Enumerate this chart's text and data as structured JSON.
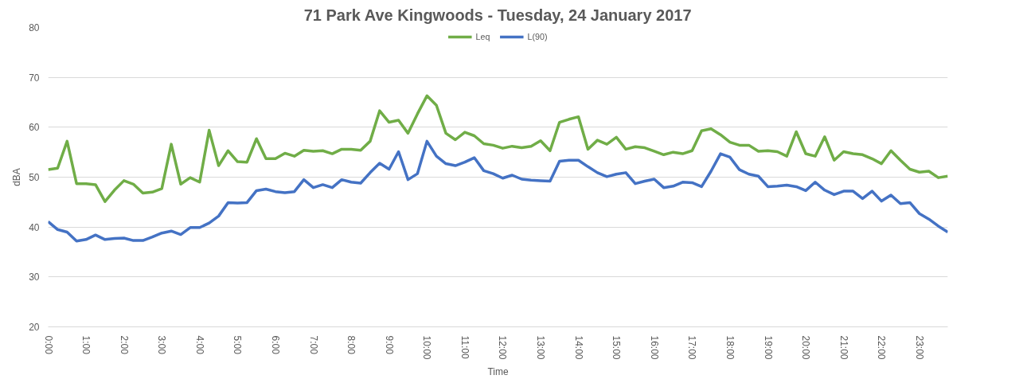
{
  "chart_data": {
    "type": "line",
    "title": "71 Park Ave Kingwoods - Tuesday, 24 January 2017",
    "xlabel": "Time",
    "ylabel": "dBA",
    "x": [
      0,
      0.25,
      0.5,
      0.75,
      1,
      1.25,
      1.5,
      1.75,
      2,
      2.25,
      2.5,
      2.75,
      3,
      3.25,
      3.5,
      3.75,
      4,
      4.25,
      4.5,
      4.75,
      5,
      5.25,
      5.5,
      5.75,
      6,
      6.25,
      6.5,
      6.75,
      7,
      7.25,
      7.5,
      7.75,
      8,
      8.25,
      8.5,
      8.75,
      9,
      9.25,
      9.5,
      9.75,
      10,
      10.25,
      10.5,
      10.75,
      11,
      11.25,
      11.5,
      11.75,
      12,
      12.25,
      12.5,
      12.75,
      13,
      13.25,
      13.5,
      13.75,
      14,
      14.25,
      14.5,
      14.75,
      15,
      15.25,
      15.5,
      15.75,
      16,
      16.25,
      16.5,
      16.75,
      17,
      17.25,
      17.5,
      17.75,
      18,
      18.25,
      18.5,
      18.75,
      19,
      19.25,
      19.5,
      19.75,
      20,
      20.25,
      20.5,
      20.75,
      21,
      21.25,
      21.5,
      21.75,
      22,
      22.25,
      22.5,
      22.75,
      23,
      23.25,
      23.5,
      23.75
    ],
    "series": [
      {
        "name": "Leq",
        "color": "#70ad47",
        "values": [
          51.5,
          51.8,
          57.2,
          48.7,
          48.7,
          48.5,
          45.1,
          47.4,
          49.3,
          48.6,
          46.8,
          47.0,
          47.7,
          56.6,
          48.6,
          49.9,
          49.0,
          59.4,
          52.3,
          55.3,
          53.1,
          53.0,
          57.7,
          53.7,
          53.7,
          54.8,
          54.2,
          55.4,
          55.2,
          55.3,
          54.7,
          55.6,
          55.6,
          55.4,
          57.2,
          63.3,
          61.0,
          61.4,
          58.8,
          62.7,
          66.3,
          64.4,
          58.8,
          57.5,
          59.0,
          58.3,
          56.7,
          56.4,
          55.8,
          56.2,
          55.9,
          56.2,
          57.3,
          55.3,
          61.0,
          61.6,
          62.1,
          55.6,
          57.4,
          56.6,
          58.0,
          55.6,
          56.1,
          55.9,
          55.2,
          54.5,
          55.0,
          54.7,
          55.3,
          59.3,
          59.7,
          58.5,
          57.0,
          56.4,
          56.4,
          55.2,
          55.3,
          55.1,
          54.2,
          59.1,
          54.7,
          54.2,
          58.1,
          53.4,
          55.1,
          54.7,
          54.5,
          53.7,
          52.7,
          55.3,
          53.4,
          51.6,
          51.0,
          51.2,
          49.9,
          50.2
        ]
      },
      {
        "name": "L(90)",
        "color": "#4472c4",
        "values": [
          41.1,
          39.5,
          39.0,
          37.2,
          37.5,
          38.4,
          37.5,
          37.7,
          37.8,
          37.3,
          37.3,
          38.0,
          38.8,
          39.2,
          38.5,
          39.9,
          39.9,
          40.8,
          42.2,
          44.9,
          44.8,
          44.9,
          47.3,
          47.6,
          47.1,
          46.9,
          47.1,
          49.5,
          47.9,
          48.5,
          47.9,
          49.5,
          49.0,
          48.8,
          50.9,
          52.8,
          51.6,
          55.1,
          49.5,
          50.7,
          57.2,
          54.2,
          52.7,
          52.3,
          53.0,
          53.9,
          51.3,
          50.7,
          49.8,
          50.4,
          49.6,
          49.4,
          49.3,
          49.2,
          53.2,
          53.4,
          53.4,
          52.1,
          50.9,
          50.1,
          50.6,
          50.9,
          48.7,
          49.2,
          49.6,
          47.9,
          48.2,
          49.0,
          48.9,
          48.1,
          51.2,
          54.7,
          54.0,
          51.5,
          50.6,
          50.2,
          48.1,
          48.2,
          48.4,
          48.1,
          47.3,
          49.0,
          47.4,
          46.5,
          47.2,
          47.2,
          45.7,
          47.2,
          45.2,
          46.4,
          44.7,
          44.9,
          42.7,
          41.6,
          40.2,
          39.0
        ]
      }
    ],
    "xlim": [
      0,
      23.75
    ],
    "xticks": [
      {
        "value": 0,
        "label": "0:00"
      },
      {
        "value": 1,
        "label": "1:00"
      },
      {
        "value": 2,
        "label": "2:00"
      },
      {
        "value": 3,
        "label": "3:00"
      },
      {
        "value": 4,
        "label": "4:00"
      },
      {
        "value": 5,
        "label": "5:00"
      },
      {
        "value": 6,
        "label": "6:00"
      },
      {
        "value": 7,
        "label": "7:00"
      },
      {
        "value": 8,
        "label": "8:00"
      },
      {
        "value": 9,
        "label": "9:00"
      },
      {
        "value": 10,
        "label": "10:00"
      },
      {
        "value": 11,
        "label": "11:00"
      },
      {
        "value": 12,
        "label": "12:00"
      },
      {
        "value": 13,
        "label": "13:00"
      },
      {
        "value": 14,
        "label": "14:00"
      },
      {
        "value": 15,
        "label": "15:00"
      },
      {
        "value": 16,
        "label": "16:00"
      },
      {
        "value": 17,
        "label": "17:00"
      },
      {
        "value": 18,
        "label": "18:00"
      },
      {
        "value": 19,
        "label": "19:00"
      },
      {
        "value": 20,
        "label": "20:00"
      },
      {
        "value": 21,
        "label": "21:00"
      },
      {
        "value": 22,
        "label": "22:00"
      },
      {
        "value": 23,
        "label": "23:00"
      }
    ],
    "ylim": [
      20,
      80
    ],
    "yticks": [
      20,
      30,
      40,
      50,
      60,
      70,
      80
    ],
    "grid": "y",
    "legend": "top",
    "marker": "none",
    "line_style": "solid"
  }
}
